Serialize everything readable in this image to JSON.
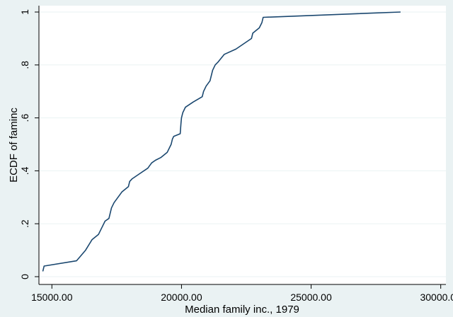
{
  "chart_data": {
    "type": "line",
    "title": "",
    "xlabel": "Median family inc., 1979",
    "ylabel": "ECDF of faminc",
    "xlim": [
      14500,
      30200
    ],
    "ylim": [
      0,
      1
    ],
    "grid": "horizontal",
    "x_ticks": [
      15000,
      20000,
      25000,
      30000
    ],
    "x_tick_labels": [
      "15000.00",
      "20000.00",
      "25000.00",
      "30000.00"
    ],
    "y_ticks": [
      0,
      0.2,
      0.4,
      0.6,
      0.8,
      1
    ],
    "y_tick_labels": [
      "0",
      ".2",
      ".4",
      ".6",
      ".8",
      "1"
    ],
    "line_color": "#1a476f",
    "series": [
      {
        "x": [
          14650,
          14700,
          15950,
          16300,
          16550,
          16800,
          16900,
          17000,
          17050,
          17200,
          17300,
          17400,
          17550,
          17700,
          17950,
          18000,
          18100,
          18400,
          18700,
          18850,
          19000,
          19200,
          19450,
          19600,
          19650,
          19700,
          19950,
          19980,
          20000,
          20050,
          20150,
          20450,
          20800,
          20850,
          20950,
          21100,
          21200,
          21300,
          21400,
          21650,
          22100,
          22700,
          22750,
          23000,
          23100,
          23150,
          28450
        ],
        "y": [
          0.02,
          0.04,
          0.06,
          0.1,
          0.14,
          0.16,
          0.18,
          0.2,
          0.21,
          0.22,
          0.26,
          0.28,
          0.3,
          0.32,
          0.34,
          0.36,
          0.37,
          0.39,
          0.41,
          0.43,
          0.44,
          0.45,
          0.47,
          0.5,
          0.52,
          0.53,
          0.54,
          0.58,
          0.6,
          0.62,
          0.64,
          0.66,
          0.68,
          0.7,
          0.72,
          0.74,
          0.78,
          0.8,
          0.81,
          0.84,
          0.86,
          0.9,
          0.92,
          0.94,
          0.96,
          0.98,
          1.0
        ]
      }
    ]
  }
}
